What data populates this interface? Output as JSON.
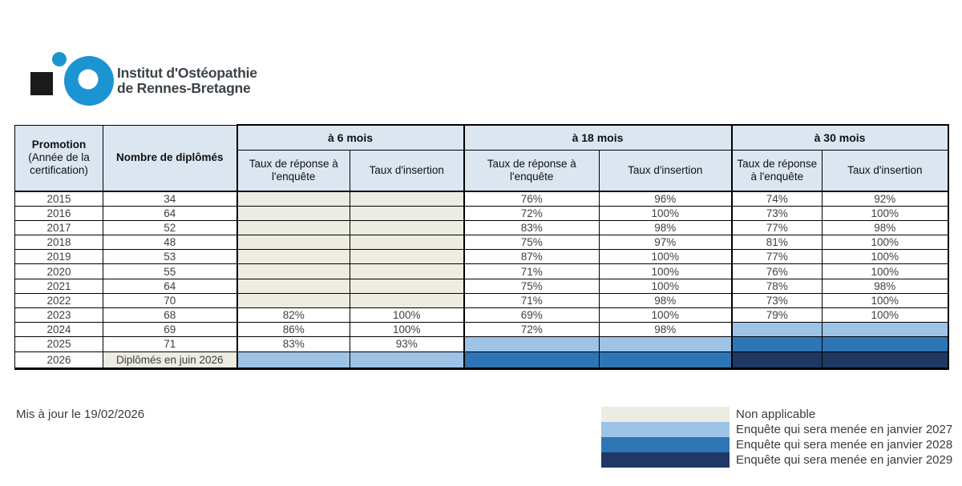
{
  "logo": {
    "title_line1": "Institut d'Ostéopathie",
    "title_line2": "de Rennes-Bretagne"
  },
  "table": {
    "headers": {
      "promotion_title": "Promotion",
      "promotion_sub": "(Année de la certification)",
      "diplomes": "Nombre de diplômés",
      "group_6": "à 6 mois",
      "group_18": "à 18 mois",
      "group_30": "à 30 mois",
      "response": "Taux de réponse à l'enquête",
      "insertion": "Taux d'insertion"
    },
    "rows": [
      {
        "year": "2015",
        "diplomes": "34",
        "diplomes_bg": "white",
        "cells": [
          {
            "v": "",
            "bg": "na"
          },
          {
            "v": "",
            "bg": "na"
          },
          {
            "v": "76%",
            "bg": "white"
          },
          {
            "v": "96%",
            "bg": "white"
          },
          {
            "v": "74%",
            "bg": "white"
          },
          {
            "v": "92%",
            "bg": "white"
          }
        ]
      },
      {
        "year": "2016",
        "diplomes": "64",
        "diplomes_bg": "white",
        "cells": [
          {
            "v": "",
            "bg": "na"
          },
          {
            "v": "",
            "bg": "na"
          },
          {
            "v": "72%",
            "bg": "white"
          },
          {
            "v": "100%",
            "bg": "white"
          },
          {
            "v": "73%",
            "bg": "white"
          },
          {
            "v": "100%",
            "bg": "white"
          }
        ]
      },
      {
        "year": "2017",
        "diplomes": "52",
        "diplomes_bg": "white",
        "cells": [
          {
            "v": "",
            "bg": "na"
          },
          {
            "v": "",
            "bg": "na"
          },
          {
            "v": "83%",
            "bg": "white"
          },
          {
            "v": "98%",
            "bg": "white"
          },
          {
            "v": "77%",
            "bg": "white"
          },
          {
            "v": "98%",
            "bg": "white"
          }
        ]
      },
      {
        "year": "2018",
        "diplomes": "48",
        "diplomes_bg": "white",
        "cells": [
          {
            "v": "",
            "bg": "na"
          },
          {
            "v": "",
            "bg": "na"
          },
          {
            "v": "75%",
            "bg": "white"
          },
          {
            "v": "97%",
            "bg": "white"
          },
          {
            "v": "81%",
            "bg": "white"
          },
          {
            "v": "100%",
            "bg": "white"
          }
        ]
      },
      {
        "year": "2019",
        "diplomes": "53",
        "diplomes_bg": "white",
        "cells": [
          {
            "v": "",
            "bg": "na"
          },
          {
            "v": "",
            "bg": "na"
          },
          {
            "v": "87%",
            "bg": "white"
          },
          {
            "v": "100%",
            "bg": "white"
          },
          {
            "v": "77%",
            "bg": "white"
          },
          {
            "v": "100%",
            "bg": "white"
          }
        ]
      },
      {
        "year": "2020",
        "diplomes": "55",
        "diplomes_bg": "white",
        "cells": [
          {
            "v": "",
            "bg": "na"
          },
          {
            "v": "",
            "bg": "na"
          },
          {
            "v": "71%",
            "bg": "white"
          },
          {
            "v": "100%",
            "bg": "white"
          },
          {
            "v": "76%",
            "bg": "white"
          },
          {
            "v": "100%",
            "bg": "white"
          }
        ]
      },
      {
        "year": "2021",
        "diplomes": "64",
        "diplomes_bg": "white",
        "cells": [
          {
            "v": "",
            "bg": "na"
          },
          {
            "v": "",
            "bg": "na"
          },
          {
            "v": "75%",
            "bg": "white"
          },
          {
            "v": "100%",
            "bg": "white"
          },
          {
            "v": "78%",
            "bg": "white"
          },
          {
            "v": "98%",
            "bg": "white"
          }
        ]
      },
      {
        "year": "2022",
        "diplomes": "70",
        "diplomes_bg": "white",
        "cells": [
          {
            "v": "",
            "bg": "na"
          },
          {
            "v": "",
            "bg": "na"
          },
          {
            "v": "71%",
            "bg": "white"
          },
          {
            "v": "98%",
            "bg": "white"
          },
          {
            "v": "73%",
            "bg": "white"
          },
          {
            "v": "100%",
            "bg": "white"
          }
        ]
      },
      {
        "year": "2023",
        "diplomes": "68",
        "diplomes_bg": "white",
        "cells": [
          {
            "v": "82%",
            "bg": "white"
          },
          {
            "v": "100%",
            "bg": "white"
          },
          {
            "v": "69%",
            "bg": "white"
          },
          {
            "v": "100%",
            "bg": "white"
          },
          {
            "v": "79%",
            "bg": "white"
          },
          {
            "v": "100%",
            "bg": "white"
          }
        ]
      },
      {
        "year": "2024",
        "diplomes": "69",
        "diplomes_bg": "white",
        "cells": [
          {
            "v": "86%",
            "bg": "white"
          },
          {
            "v": "100%",
            "bg": "white"
          },
          {
            "v": "72%",
            "bg": "white"
          },
          {
            "v": "98%",
            "bg": "white"
          },
          {
            "v": "",
            "bg": "b2027"
          },
          {
            "v": "",
            "bg": "b2027"
          }
        ]
      },
      {
        "year": "2025",
        "diplomes": "71",
        "diplomes_bg": "white",
        "cells": [
          {
            "v": "83%",
            "bg": "white"
          },
          {
            "v": "93%",
            "bg": "white"
          },
          {
            "v": "",
            "bg": "b2027"
          },
          {
            "v": "",
            "bg": "b2027"
          },
          {
            "v": "",
            "bg": "b2028"
          },
          {
            "v": "",
            "bg": "b2028"
          }
        ]
      },
      {
        "year": "2026",
        "diplomes": "Diplômés en juin 2026",
        "diplomes_bg": "na",
        "cells": [
          {
            "v": "",
            "bg": "b2027"
          },
          {
            "v": "",
            "bg": "b2027"
          },
          {
            "v": "",
            "bg": "b2028"
          },
          {
            "v": "",
            "bg": "b2028"
          },
          {
            "v": "",
            "bg": "b2029"
          },
          {
            "v": "",
            "bg": "b2029"
          }
        ]
      }
    ]
  },
  "footer": {
    "updated_text": "Mis à jour le 19/02/2026"
  },
  "legend": {
    "items": [
      {
        "label": "Non applicable",
        "color_key": "na"
      },
      {
        "label": "Enquête qui sera menée en janvier 2027",
        "color_key": "b2027"
      },
      {
        "label": "Enquête qui sera menée en janvier 2028",
        "color_key": "b2028"
      },
      {
        "label": "Enquête qui sera menée en janvier 2029",
        "color_key": "b2029"
      }
    ]
  },
  "colors": {
    "header_bg": "#dce6f1",
    "na": "#edece2",
    "b2027": "#9dc3e6",
    "b2028": "#2e75b6",
    "b2029": "#1f3864",
    "logo_blue": "#1d94d2",
    "logo_black": "#1a1a1a"
  }
}
